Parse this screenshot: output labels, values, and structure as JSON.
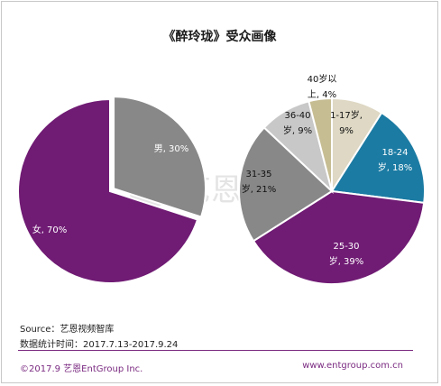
{
  "page": {
    "title": "《醉玲珑》受众画像",
    "watermark_text": "艺恩",
    "source_line": "Source：艺恩视频智库",
    "period_line": "数据统计时间：2017.7.13-2017.9.24",
    "footer_left": "©2017.9 艺恩EntGroup Inc.",
    "footer_right": "www.entgroup.com.cn"
  },
  "colors": {
    "purple": "#701B74",
    "gray_dark": "#888888",
    "gray_mid": "#a0a0a0",
    "gray_light": "#c8c8c8",
    "khaki": "#c7bd93",
    "beige": "#ded8c4",
    "teal": "#1b7ba3",
    "accent": "#7a2a80"
  },
  "chart_data": [
    {
      "type": "pie",
      "title": "",
      "slices": [
        {
          "label": "男",
          "value": 30,
          "display": "男, 30%",
          "color": "#888888",
          "exploded": true
        },
        {
          "label": "女",
          "value": 70,
          "display": "女, 70%",
          "color": "#701B74",
          "exploded": false
        }
      ]
    },
    {
      "type": "pie",
      "title": "",
      "slices": [
        {
          "label": "1-17岁",
          "value": 9,
          "display_lines": [
            "1-17岁,",
            "9%"
          ],
          "color": "#ded8c4"
        },
        {
          "label": "18-24岁",
          "value": 18,
          "display_lines": [
            "18-24",
            "岁, 18%"
          ],
          "color": "#1b7ba3"
        },
        {
          "label": "25-30岁",
          "value": 39,
          "display_lines": [
            "25-30",
            "岁, 39%"
          ],
          "color": "#701B74"
        },
        {
          "label": "31-35岁",
          "value": 21,
          "display_lines": [
            "31-35",
            "岁, 21%"
          ],
          "color": "#888888"
        },
        {
          "label": "36-40岁",
          "value": 9,
          "display_lines": [
            "36-40",
            "岁, 9%"
          ],
          "color": "#c8c8c8"
        },
        {
          "label": "40岁以上",
          "value": 4,
          "display_lines": [
            "40岁以",
            "上, 4%"
          ],
          "color": "#c7bd93"
        }
      ]
    }
  ]
}
